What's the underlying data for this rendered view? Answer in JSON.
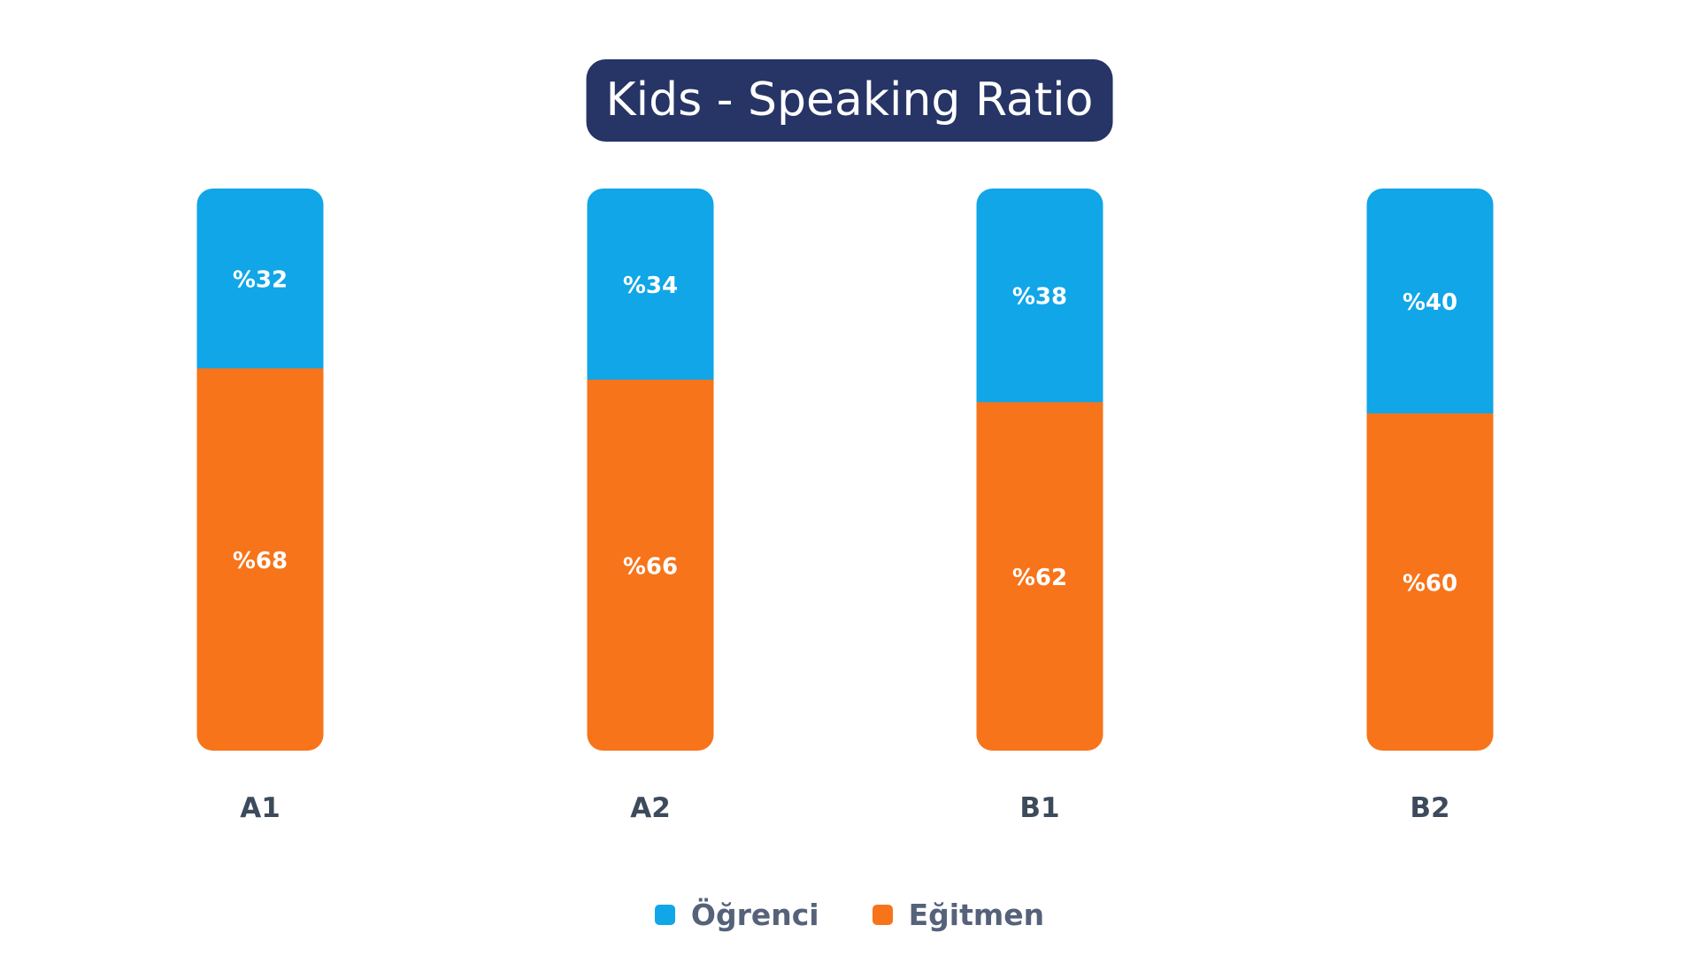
{
  "chart_data": {
    "type": "bar",
    "stacked": true,
    "title": "Kids - Speaking Ratio",
    "categories": [
      "A1",
      "A2",
      "B1",
      "B2"
    ],
    "series": [
      {
        "name": "Öğrenci",
        "color": "#10a6e8",
        "values": [
          32,
          34,
          38,
          40
        ],
        "labels": [
          "%32",
          "%34",
          "%38",
          "%40"
        ]
      },
      {
        "name": "Eğitmen",
        "color": "#f7741a",
        "values": [
          68,
          66,
          62,
          60
        ],
        "labels": [
          "%68",
          "%66",
          "%62",
          "%60"
        ]
      }
    ],
    "ylim": [
      0,
      100
    ],
    "grid": false,
    "legend_position": "bottom-center"
  },
  "colors": {
    "title_background": "#263466",
    "category_label": "#3d4a5c",
    "legend_text": "#55627a"
  }
}
